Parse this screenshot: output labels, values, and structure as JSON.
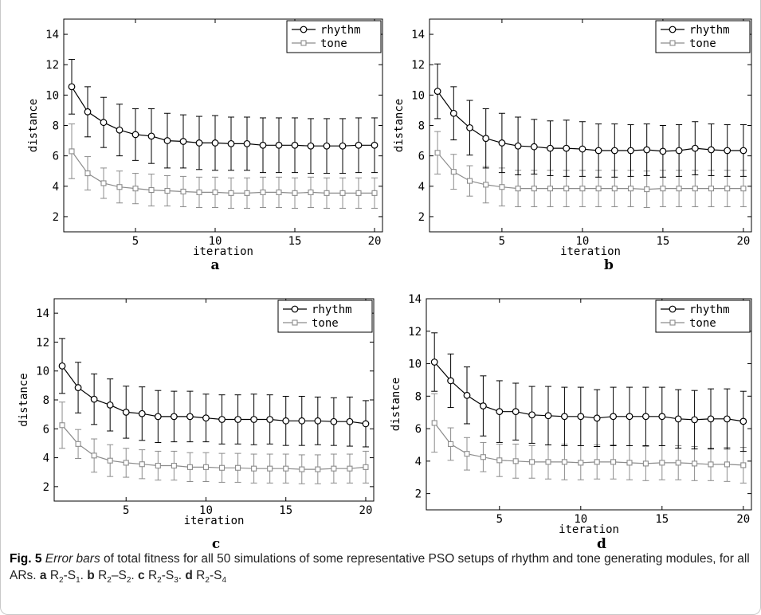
{
  "chart_data": [
    {
      "type": "line",
      "panel_label": "a",
      "xlabel": "iteration",
      "ylabel": "distance",
      "xlim": [
        0.5,
        20.5
      ],
      "ylim": [
        1,
        15
      ],
      "xticks": [
        5,
        10,
        15,
        20
      ],
      "yticks": [
        2,
        4,
        6,
        8,
        10,
        12,
        14
      ],
      "legend_position": "top-right",
      "x": [
        1,
        2,
        3,
        4,
        5,
        6,
        7,
        8,
        9,
        10,
        11,
        12,
        13,
        14,
        15,
        16,
        17,
        18,
        19,
        20
      ],
      "series": [
        {
          "name": "rhythm",
          "marker": "circle",
          "color": "#000000",
          "values": [
            10.55,
            8.9,
            8.2,
            7.7,
            7.4,
            7.3,
            7.0,
            6.95,
            6.85,
            6.85,
            6.8,
            6.8,
            6.7,
            6.7,
            6.7,
            6.65,
            6.65,
            6.65,
            6.7,
            6.7
          ],
          "errors": [
            1.8,
            1.65,
            1.65,
            1.7,
            1.7,
            1.8,
            1.8,
            1.75,
            1.75,
            1.8,
            1.75,
            1.75,
            1.8,
            1.8,
            1.8,
            1.8,
            1.8,
            1.8,
            1.8,
            1.8
          ]
        },
        {
          "name": "tone",
          "marker": "square",
          "color": "#8c8c8c",
          "values": [
            6.3,
            4.85,
            4.2,
            3.95,
            3.85,
            3.75,
            3.7,
            3.65,
            3.6,
            3.6,
            3.55,
            3.55,
            3.6,
            3.6,
            3.55,
            3.6,
            3.55,
            3.55,
            3.55,
            3.55
          ],
          "errors": [
            1.8,
            1.1,
            1.0,
            1.05,
            1.0,
            1.05,
            1.0,
            1.0,
            1.0,
            1.0,
            1.0,
            1.0,
            1.0,
            1.0,
            1.0,
            1.0,
            1.0,
            1.0,
            1.0,
            1.0
          ]
        }
      ]
    },
    {
      "type": "line",
      "panel_label": "b",
      "xlabel": "iteration",
      "ylabel": "distance",
      "xlim": [
        0.5,
        20.5
      ],
      "ylim": [
        1,
        15
      ],
      "xticks": [
        5,
        10,
        15,
        20
      ],
      "yticks": [
        2,
        4,
        6,
        8,
        10,
        12,
        14
      ],
      "legend_position": "top-right",
      "x": [
        1,
        2,
        3,
        4,
        5,
        6,
        7,
        8,
        9,
        10,
        11,
        12,
        13,
        14,
        15,
        16,
        17,
        18,
        19,
        20
      ],
      "series": [
        {
          "name": "rhythm",
          "marker": "circle",
          "color": "#000000",
          "values": [
            10.25,
            8.8,
            7.85,
            7.15,
            6.85,
            6.65,
            6.6,
            6.5,
            6.5,
            6.45,
            6.35,
            6.35,
            6.35,
            6.4,
            6.3,
            6.35,
            6.5,
            6.4,
            6.35,
            6.35
          ],
          "errors": [
            1.8,
            1.75,
            1.8,
            1.95,
            1.95,
            1.9,
            1.8,
            1.8,
            1.85,
            1.8,
            1.75,
            1.75,
            1.7,
            1.7,
            1.7,
            1.7,
            1.75,
            1.7,
            1.7,
            1.7
          ]
        },
        {
          "name": "tone",
          "marker": "square",
          "color": "#8c8c8c",
          "values": [
            6.2,
            4.95,
            4.35,
            4.1,
            3.95,
            3.85,
            3.85,
            3.85,
            3.85,
            3.85,
            3.85,
            3.85,
            3.85,
            3.8,
            3.85,
            3.85,
            3.85,
            3.85,
            3.85,
            3.85
          ],
          "errors": [
            1.4,
            1.15,
            1.0,
            1.2,
            1.25,
            1.2,
            1.2,
            1.2,
            1.2,
            1.2,
            1.2,
            1.2,
            1.2,
            1.2,
            1.2,
            1.2,
            1.2,
            1.2,
            1.2,
            1.2
          ]
        }
      ]
    },
    {
      "type": "line",
      "panel_label": "c",
      "xlabel": "iteration",
      "ylabel": "distance",
      "xlim": [
        0.5,
        20.5
      ],
      "ylim": [
        1,
        15
      ],
      "xticks": [
        5,
        10,
        15,
        20
      ],
      "yticks": [
        2,
        4,
        6,
        8,
        10,
        12,
        14
      ],
      "legend_position": "top-right",
      "x": [
        1,
        2,
        3,
        4,
        5,
        6,
        7,
        8,
        9,
        10,
        11,
        12,
        13,
        14,
        15,
        16,
        17,
        18,
        19,
        20
      ],
      "series": [
        {
          "name": "rhythm",
          "marker": "circle",
          "color": "#000000",
          "values": [
            10.35,
            8.85,
            8.05,
            7.65,
            7.15,
            7.05,
            6.85,
            6.85,
            6.85,
            6.75,
            6.65,
            6.65,
            6.65,
            6.65,
            6.55,
            6.55,
            6.55,
            6.5,
            6.5,
            6.35
          ],
          "errors": [
            1.9,
            1.75,
            1.75,
            1.8,
            1.8,
            1.85,
            1.8,
            1.75,
            1.75,
            1.65,
            1.7,
            1.7,
            1.75,
            1.7,
            1.7,
            1.7,
            1.65,
            1.65,
            1.7,
            1.6
          ]
        },
        {
          "name": "tone",
          "marker": "square",
          "color": "#8c8c8c",
          "values": [
            6.25,
            4.95,
            4.15,
            3.8,
            3.65,
            3.55,
            3.45,
            3.45,
            3.35,
            3.35,
            3.3,
            3.3,
            3.25,
            3.25,
            3.25,
            3.2,
            3.2,
            3.25,
            3.25,
            3.35
          ],
          "errors": [
            1.6,
            1.0,
            1.15,
            1.1,
            1.0,
            1.0,
            1.0,
            1.0,
            1.0,
            1.0,
            1.0,
            1.0,
            1.0,
            1.0,
            1.0,
            1.0,
            1.0,
            1.0,
            1.0,
            1.1
          ]
        }
      ]
    },
    {
      "type": "line",
      "panel_label": "d",
      "xlabel": "iteration",
      "ylabel": "distance",
      "xlim": [
        0.5,
        20.5
      ],
      "ylim": [
        1,
        14
      ],
      "xticks": [
        5,
        10,
        15,
        20
      ],
      "yticks": [
        2,
        4,
        6,
        8,
        10,
        12,
        14
      ],
      "legend_position": "top-right",
      "x": [
        1,
        2,
        3,
        4,
        5,
        6,
        7,
        8,
        9,
        10,
        11,
        12,
        13,
        14,
        15,
        16,
        17,
        18,
        19,
        20
      ],
      "series": [
        {
          "name": "rhythm",
          "marker": "circle",
          "color": "#000000",
          "values": [
            10.1,
            8.95,
            8.05,
            7.4,
            7.05,
            7.05,
            6.85,
            6.8,
            6.75,
            6.75,
            6.65,
            6.75,
            6.75,
            6.75,
            6.75,
            6.6,
            6.55,
            6.6,
            6.6,
            6.45
          ],
          "errors": [
            1.8,
            1.65,
            1.75,
            1.85,
            1.9,
            1.75,
            1.75,
            1.8,
            1.8,
            1.8,
            1.75,
            1.8,
            1.8,
            1.8,
            1.8,
            1.8,
            1.8,
            1.85,
            1.85,
            1.85
          ]
        },
        {
          "name": "tone",
          "marker": "square",
          "color": "#8c8c8c",
          "values": [
            6.35,
            5.05,
            4.45,
            4.25,
            4.05,
            4.0,
            3.95,
            3.95,
            3.95,
            3.9,
            3.95,
            3.95,
            3.9,
            3.85,
            3.9,
            3.9,
            3.85,
            3.8,
            3.8,
            3.75
          ],
          "errors": [
            1.8,
            1.0,
            1.0,
            0.9,
            1.0,
            1.05,
            1.0,
            1.05,
            1.1,
            1.05,
            1.05,
            1.05,
            1.05,
            1.05,
            1.05,
            1.05,
            1.05,
            1.0,
            1.05,
            1.1
          ]
        }
      ]
    }
  ],
  "caption": {
    "fig_label": "Fig. 5",
    "italic_lead": "Error bars",
    "text_1": " of total fitness for all 50 simulations of some representative PSO setups of rhythm and tone generating modules, for all ARs. ",
    "parts": [
      {
        "label": "a",
        "text": "R2-S1",
        "sep": ". "
      },
      {
        "label": "b",
        "text": "R2–S2",
        "sep": ". "
      },
      {
        "label": "c",
        "text": "R2-S3",
        "sep": ". "
      },
      {
        "label": "d",
        "text": "R2-S4",
        "sep": ""
      }
    ]
  }
}
